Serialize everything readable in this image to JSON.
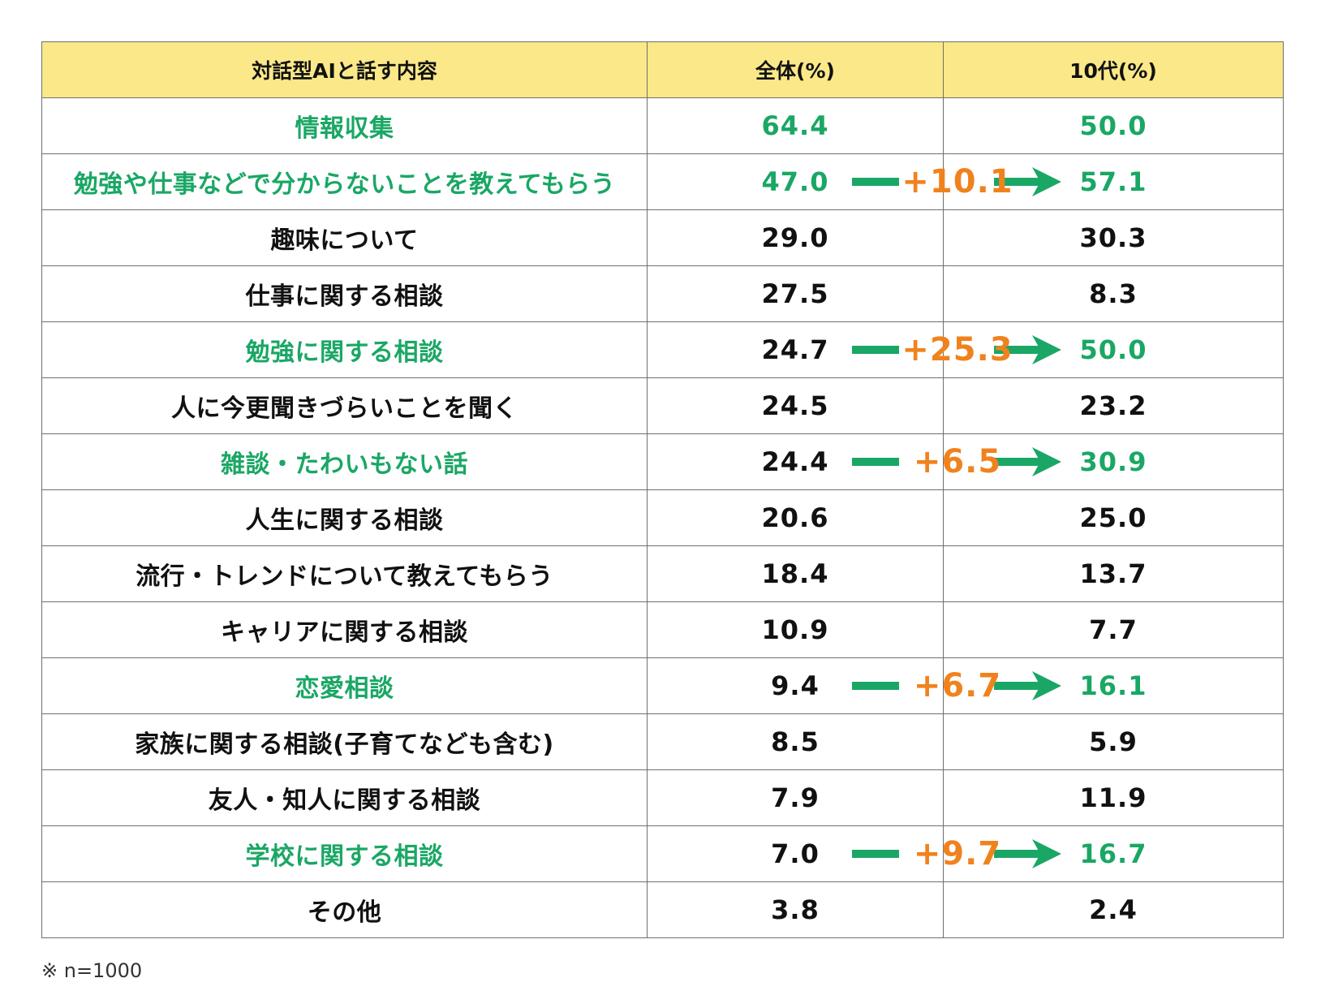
{
  "table": {
    "headers": [
      "対話型AIと話す内容",
      "全体(%)",
      "10代(%)"
    ],
    "rows": [
      {
        "item": "情報収集",
        "all": "64.4",
        "teen": "50.0",
        "highlight": true,
        "all_green": true
      },
      {
        "item": "勉強や仕事などで分からないことを教えてもらう",
        "all": "47.0",
        "teen": "57.1",
        "highlight": true,
        "all_green": true,
        "diff": "+10.1"
      },
      {
        "item": "趣味について",
        "all": "29.0",
        "teen": "30.3",
        "highlight": false
      },
      {
        "item": "仕事に関する相談",
        "all": "27.5",
        "teen": "8.3",
        "highlight": false
      },
      {
        "item": "勉強に関する相談",
        "all": "24.7",
        "teen": "50.0",
        "highlight": true,
        "all_green": false,
        "diff": "+25.3"
      },
      {
        "item": "人に今更聞きづらいことを聞く",
        "all": "24.5",
        "teen": "23.2",
        "highlight": false
      },
      {
        "item": "雑談・たわいもない話",
        "all": "24.4",
        "teen": "30.9",
        "highlight": true,
        "all_green": false,
        "diff": "+6.5"
      },
      {
        "item": "人生に関する相談",
        "all": "20.6",
        "teen": "25.0",
        "highlight": false
      },
      {
        "item": "流行・トレンドについて教えてもらう",
        "all": "18.4",
        "teen": "13.7",
        "highlight": false
      },
      {
        "item": "キャリアに関する相談",
        "all": "10.9",
        "teen": "7.7",
        "highlight": false
      },
      {
        "item": "恋愛相談",
        "all": "9.4",
        "teen": "16.1",
        "highlight": true,
        "all_green": false,
        "diff": "+6.7"
      },
      {
        "item": "家族に関する相談(子育てなども含む)",
        "all": "8.5",
        "teen": "5.9",
        "highlight": false
      },
      {
        "item": "友人・知人に関する相談",
        "all": "7.9",
        "teen": "11.9",
        "highlight": false
      },
      {
        "item": "学校に関する相談",
        "all": "7.0",
        "teen": "16.7",
        "highlight": true,
        "all_green": false,
        "diff": "+9.7"
      },
      {
        "item": "その他",
        "all": "3.8",
        "teen": "2.4",
        "highlight": false
      }
    ]
  },
  "note": "※ n=1000",
  "colors": {
    "header_bg": "#fbe889",
    "highlight_green": "#1aa765",
    "diff_orange": "#f0821e",
    "arrow_green": "#1aa765",
    "border": "#6f6f6f"
  },
  "chart_data": {
    "type": "table",
    "columns": [
      "対話型AIと話す内容",
      "全体(%)",
      "10代(%)"
    ],
    "categories": [
      "情報収集",
      "勉強や仕事などで分からないことを教えてもらう",
      "趣味について",
      "仕事に関する相談",
      "勉強に関する相談",
      "人に今更聞きづらいことを聞く",
      "雑談・たわいもない話",
      "人生に関する相談",
      "流行・トレンドについて教えてもらう",
      "キャリアに関する相談",
      "恋愛相談",
      "家族に関する相談(子育てなども含む)",
      "友人・知人に関する相談",
      "学校に関する相談",
      "その他"
    ],
    "series": [
      {
        "name": "全体(%)",
        "values": [
          64.4,
          47.0,
          29.0,
          27.5,
          24.7,
          24.5,
          24.4,
          20.6,
          18.4,
          10.9,
          9.4,
          8.5,
          7.9,
          7.0,
          3.8
        ]
      },
      {
        "name": "10代(%)",
        "values": [
          50.0,
          57.1,
          30.3,
          8.3,
          50.0,
          23.2,
          30.9,
          25.0,
          13.7,
          7.7,
          16.1,
          5.9,
          11.9,
          16.7,
          2.4
        ]
      }
    ],
    "annotations": [
      "+10.1",
      "+25.3",
      "+6.5",
      "+6.7",
      "+9.7"
    ],
    "note": "※ n=1000"
  }
}
